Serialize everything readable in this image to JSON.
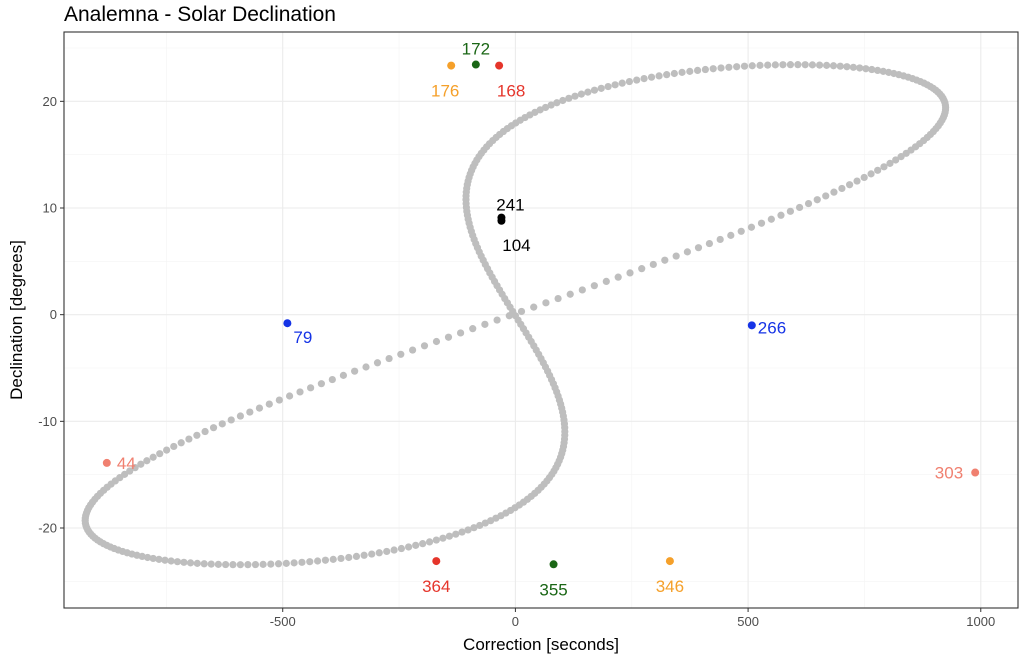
{
  "chart_data": {
    "type": "scatter",
    "title": "Analemna - Solar Declination",
    "xlabel": "Correction [seconds]",
    "ylabel": "Declination [degrees]",
    "xlim": [
      -970,
      1080
    ],
    "ylim": [
      -27.5,
      26.5
    ],
    "x_ticks": [
      -500,
      0,
      500,
      1000
    ],
    "y_ticks": [
      -20,
      -10,
      0,
      10,
      20
    ],
    "grid": true,
    "legend": "none",
    "base_color": "#bebebe",
    "equation_of_time_model": {
      "amplitudes_seconds": [
        -465,
        595
      ],
      "declination_max_deg": 23.44,
      "declination_reference_day": 10
    },
    "highlighted": [
      {
        "label": "172",
        "x": -85,
        "y": 23.45,
        "color": "#1a6615"
      },
      {
        "label": "176",
        "x": -138,
        "y": 23.35,
        "color": "#f5a02a"
      },
      {
        "label": "168",
        "x": -35,
        "y": 23.35,
        "color": "#e5352b"
      },
      {
        "label": "241",
        "x": -30,
        "y": 9.1,
        "color": "#000000"
      },
      {
        "label": "104",
        "x": -30,
        "y": 8.8,
        "color": "#000000"
      },
      {
        "label": "79",
        "x": -490,
        "y": -0.8,
        "color": "#1533e6"
      },
      {
        "label": "266",
        "x": 508,
        "y": -1.0,
        "color": "#1533e6"
      },
      {
        "label": "44",
        "x": -878,
        "y": -13.9,
        "color": "#f08070"
      },
      {
        "label": "303",
        "x": 988,
        "y": -14.8,
        "color": "#f08070"
      },
      {
        "label": "364",
        "x": -170,
        "y": -23.1,
        "color": "#e5352b"
      },
      {
        "label": "355",
        "x": 82,
        "y": -23.4,
        "color": "#1a6615"
      },
      {
        "label": "346",
        "x": 332,
        "y": -23.1,
        "color": "#f5a02a"
      }
    ]
  }
}
